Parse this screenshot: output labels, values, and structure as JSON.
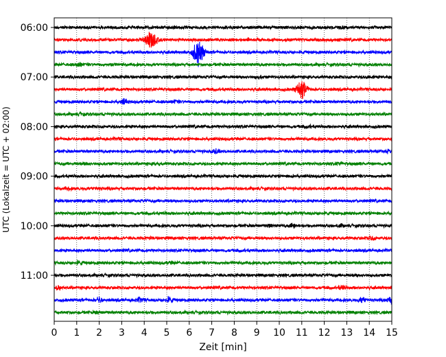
{
  "chart_data": {
    "type": "line",
    "title": "",
    "xlabel": "Zeit  [min]",
    "ylabel": "UTC (Lokalzeit = UTC + 02:00)",
    "xlim": [
      0,
      15
    ],
    "x_ticks": [
      "0",
      "1",
      "2",
      "3",
      "4",
      "5",
      "6",
      "7",
      "8",
      "9",
      "10",
      "11",
      "12",
      "13",
      "14",
      "15"
    ],
    "y_tick_labels": [
      "06:00",
      "07:00",
      "08:00",
      "09:00",
      "10:00",
      "11:00"
    ],
    "grid": "vertical dotted",
    "legend": "none",
    "trace_interval_minutes": 15,
    "trace_colors": [
      "#000000",
      "#ff0000",
      "#0000ff",
      "#008000"
    ],
    "traces": [
      {
        "start": "06:00",
        "color": "#000000",
        "events": [
          {
            "minute": 12.9,
            "amp": 1.6
          }
        ]
      },
      {
        "start": "06:15",
        "color": "#ff0000",
        "events": [
          {
            "minute": 4.3,
            "amp": 7
          }
        ]
      },
      {
        "start": "06:30",
        "color": "#0000ff",
        "events": [
          {
            "minute": 6.4,
            "amp": 9
          }
        ]
      },
      {
        "start": "06:45",
        "color": "#008000",
        "events": [
          {
            "minute": 1.1,
            "amp": 1.8
          },
          {
            "minute": 2.6,
            "amp": 1.4
          }
        ]
      },
      {
        "start": "07:00",
        "color": "#000000",
        "events": [
          {
            "minute": 9.1,
            "amp": 1.5
          },
          {
            "minute": 14.0,
            "amp": 1.4
          }
        ]
      },
      {
        "start": "07:15",
        "color": "#ff0000",
        "events": [
          {
            "minute": 11.0,
            "amp": 6
          }
        ]
      },
      {
        "start": "07:30",
        "color": "#0000ff",
        "events": [
          {
            "minute": 3.1,
            "amp": 2.2
          },
          {
            "minute": 5.4,
            "amp": 1.6
          }
        ]
      },
      {
        "start": "07:45",
        "color": "#008000",
        "events": [
          {
            "minute": 1.2,
            "amp": 1.5
          }
        ]
      },
      {
        "start": "08:00",
        "color": "#000000",
        "events": [
          {
            "minute": 11.3,
            "amp": 1.5
          }
        ]
      },
      {
        "start": "08:15",
        "color": "#ff0000",
        "events": [
          {
            "minute": 2.8,
            "amp": 1.2
          }
        ]
      },
      {
        "start": "08:30",
        "color": "#0000ff",
        "events": [
          {
            "minute": 7.2,
            "amp": 2
          },
          {
            "minute": 14.8,
            "amp": 1.6
          }
        ]
      },
      {
        "start": "08:45",
        "color": "#008000",
        "events": [
          {
            "minute": 1.4,
            "amp": 1.6
          },
          {
            "minute": 4.6,
            "amp": 1.5
          },
          {
            "minute": 12.7,
            "amp": 1.8
          }
        ]
      },
      {
        "start": "09:00",
        "color": "#000000",
        "events": [
          {
            "minute": 10.6,
            "amp": 1.3
          }
        ]
      },
      {
        "start": "09:15",
        "color": "#ff0000",
        "events": [
          {
            "minute": 0.6,
            "amp": 1.6
          },
          {
            "minute": 1.9,
            "amp": 1.5
          }
        ]
      },
      {
        "start": "09:30",
        "color": "#0000ff",
        "events": [
          {
            "minute": 7.8,
            "amp": 1.2
          }
        ]
      },
      {
        "start": "09:45",
        "color": "#008000",
        "events": [
          {
            "minute": 5.0,
            "amp": 1.3
          },
          {
            "minute": 12.0,
            "amp": 1.3
          }
        ]
      },
      {
        "start": "10:00",
        "color": "#000000",
        "events": [
          {
            "minute": 9.6,
            "amp": 1.8
          },
          {
            "minute": 10.6,
            "amp": 2.2
          },
          {
            "minute": 12.7,
            "amp": 1.5
          }
        ]
      },
      {
        "start": "10:15",
        "color": "#ff0000",
        "events": [
          {
            "minute": 4.2,
            "amp": 1.2
          },
          {
            "minute": 14.1,
            "amp": 1.8
          }
        ]
      },
      {
        "start": "10:30",
        "color": "#0000ff",
        "events": [
          {
            "minute": 8.4,
            "amp": 1.2
          }
        ]
      },
      {
        "start": "10:45",
        "color": "#008000",
        "events": [
          {
            "minute": 1.1,
            "amp": 1.8
          },
          {
            "minute": 5.2,
            "amp": 1.3
          }
        ]
      },
      {
        "start": "11:00",
        "color": "#000000",
        "events": [
          {
            "minute": 13.4,
            "amp": 1.2
          }
        ]
      },
      {
        "start": "11:15",
        "color": "#ff0000",
        "events": [
          {
            "minute": 0.2,
            "amp": 2
          },
          {
            "minute": 12.8,
            "amp": 2.2
          }
        ]
      },
      {
        "start": "11:30",
        "color": "#0000ff",
        "events": [
          {
            "minute": 2.0,
            "amp": 2.2
          },
          {
            "minute": 3.8,
            "amp": 2
          },
          {
            "minute": 5.1,
            "amp": 2.6
          },
          {
            "minute": 13.7,
            "amp": 2.2
          },
          {
            "minute": 14.95,
            "amp": 2.8
          }
        ]
      },
      {
        "start": "11:45",
        "color": "#008000",
        "events": [
          {
            "minute": 1.9,
            "amp": 1.4
          }
        ]
      }
    ]
  }
}
